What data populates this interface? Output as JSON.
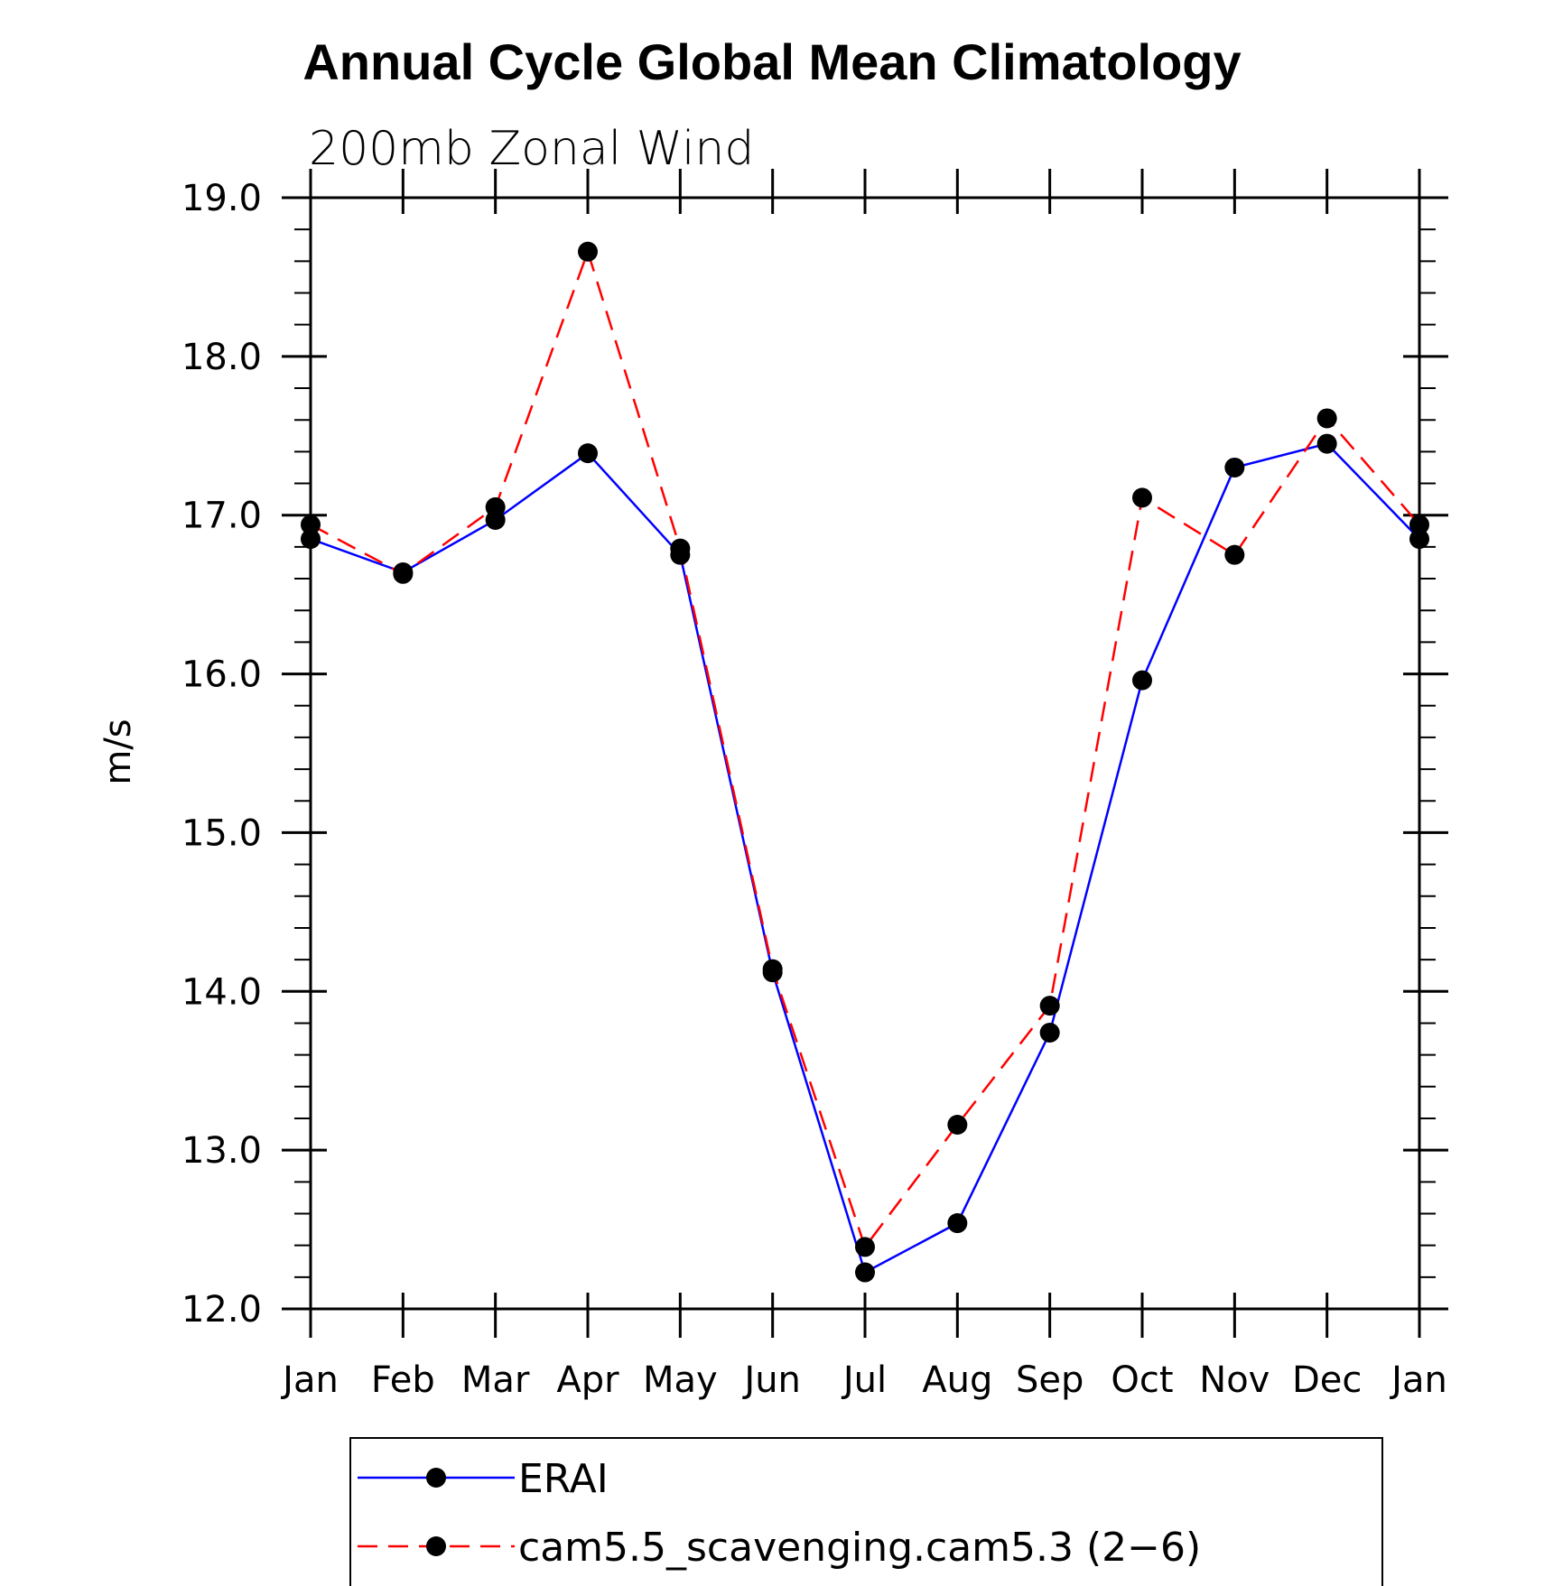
{
  "chart_data": {
    "type": "line",
    "title": "Annual Cycle Global Mean Climatology",
    "subtitle": "200mb Zonal Wind",
    "ylabel": "m/s",
    "xlabel": "",
    "categories": [
      "Jan",
      "Feb",
      "Mar",
      "Apr",
      "May",
      "Jun",
      "Jul",
      "Aug",
      "Sep",
      "Oct",
      "Nov",
      "Dec",
      "Jan"
    ],
    "ylim": [
      12.0,
      19.0
    ],
    "yticks": [
      "12.0",
      "13.0",
      "14.0",
      "15.0",
      "16.0",
      "17.0",
      "18.0",
      "19.0"
    ],
    "series": [
      {
        "name": "ERAI",
        "color": "#0000ff",
        "dash": "solid",
        "values": [
          16.85,
          16.64,
          16.97,
          17.39,
          16.75,
          14.12,
          12.23,
          12.54,
          13.74,
          15.96,
          17.3,
          17.45,
          16.85
        ]
      },
      {
        "name": "cam5.5_scavenging.cam5.3 (2-6)",
        "color": "#ff0000",
        "dash": "dashed",
        "values": [
          16.94,
          16.63,
          17.05,
          18.66,
          16.79,
          14.14,
          12.39,
          13.16,
          13.91,
          17.11,
          16.75,
          17.61,
          16.94
        ]
      }
    ],
    "marker": "filled-circle",
    "marker_color": "#000000",
    "legend_position": "bottom-center",
    "legend_labels": [
      "ERAI",
      "cam5.5_scavenging.cam5.3 (2−6)"
    ],
    "grid": false
  }
}
